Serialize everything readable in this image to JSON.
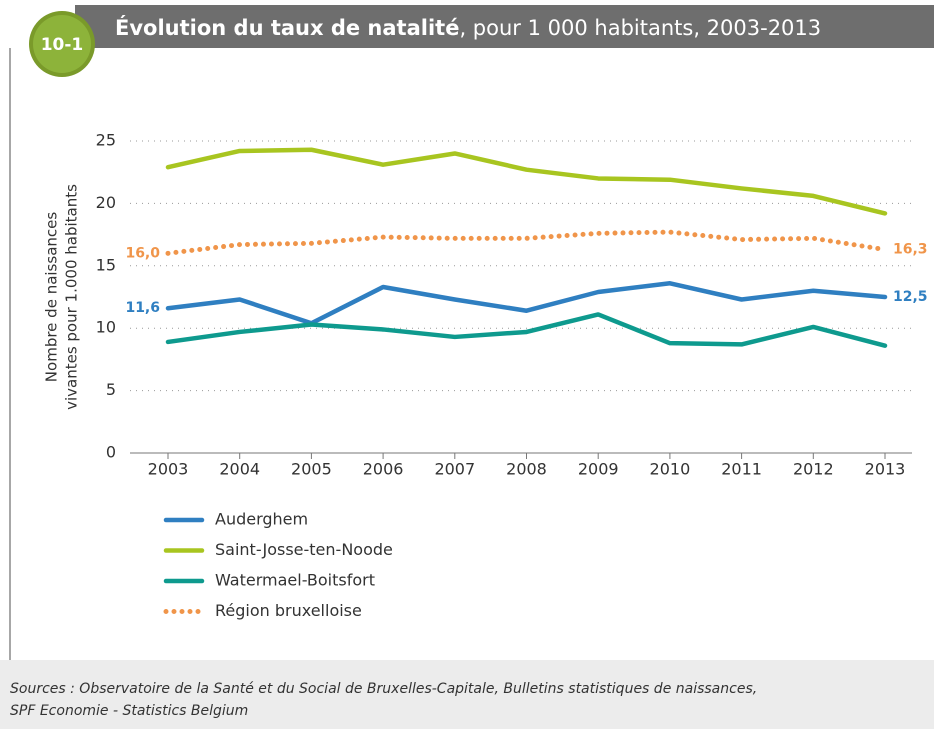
{
  "badge": "10-1",
  "chart_data": {
    "type": "line",
    "title": "Évolution du taux de natalité",
    "subtitle": ", pour 1 000 habitants, 2003-2013",
    "ylabel": [
      "Nombre de naissances",
      "vivantes pour 1.000 habitants"
    ],
    "categories": [
      "2003",
      "2004",
      "2005",
      "2006",
      "2007",
      "2008",
      "2009",
      "2010",
      "2011",
      "2012",
      "2013"
    ],
    "ylim": [
      0,
      25
    ],
    "yticks": [
      0,
      5,
      10,
      15,
      20,
      25
    ],
    "grid": true,
    "series": [
      {
        "name": "Auderghem",
        "color": "#2f7fc1",
        "style": "solid",
        "values": [
          11.6,
          12.3,
          10.4,
          13.3,
          12.3,
          11.4,
          12.9,
          13.6,
          12.3,
          13.0,
          12.5
        ],
        "value_labels": [
          "11,6",
          null,
          null,
          null,
          null,
          null,
          null,
          null,
          null,
          null,
          "12,5"
        ]
      },
      {
        "name": "Saint-Josse-ten-Noode",
        "color": "#a8c520",
        "style": "solid",
        "values": [
          22.9,
          24.2,
          24.3,
          23.1,
          24.0,
          22.7,
          22.0,
          21.9,
          21.2,
          20.6,
          19.2
        ]
      },
      {
        "name": "Watermael-Boitsfort",
        "color": "#0e9a8e",
        "style": "solid",
        "values": [
          8.9,
          9.7,
          10.3,
          9.9,
          9.3,
          9.7,
          11.1,
          8.8,
          8.7,
          10.1,
          8.6
        ]
      },
      {
        "name": "Région bruxelloise",
        "color": "#f0954a",
        "style": "dotted",
        "values": [
          16.0,
          16.7,
          16.8,
          17.3,
          17.2,
          17.2,
          17.6,
          17.7,
          17.1,
          17.2,
          16.3
        ],
        "value_labels": [
          "16,0",
          null,
          null,
          null,
          null,
          null,
          null,
          null,
          null,
          null,
          "16,3"
        ]
      }
    ]
  },
  "sources": [
    "Sources : Observatoire de la Santé et du Social de Bruxelles-Capitale, Bulletins statistiques de naissances,",
    "SPF Economie - Statistics Belgium"
  ]
}
